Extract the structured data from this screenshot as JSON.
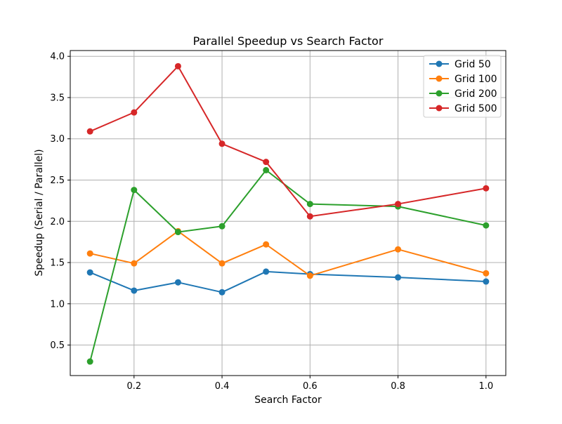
{
  "chart_data": {
    "type": "line",
    "title": "Parallel Speedup vs Search Factor",
    "xlabel": "Search Factor",
    "ylabel": "Speedup (Serial / Parallel)",
    "xlim": [
      0.055,
      1.045
    ],
    "ylim": [
      0.13,
      4.07
    ],
    "xticks": [
      0.2,
      0.4,
      0.6,
      0.8,
      1.0
    ],
    "xtick_labels": [
      "0.2",
      "0.4",
      "0.6",
      "0.8",
      "1.0"
    ],
    "yticks": [
      0.5,
      1.0,
      1.5,
      2.0,
      2.5,
      3.0,
      3.5,
      4.0
    ],
    "ytick_labels": [
      "0.5",
      "1.0",
      "1.5",
      "2.0",
      "2.5",
      "3.0",
      "3.5",
      "4.0"
    ],
    "grid": true,
    "legend_position": "top-right",
    "x": [
      0.1,
      0.2,
      0.3,
      0.4,
      0.5,
      0.6,
      0.8,
      1.0
    ],
    "series": [
      {
        "name": "Grid 50",
        "color": "#1f77b4",
        "values": [
          1.38,
          1.16,
          1.26,
          1.14,
          1.39,
          1.36,
          1.32,
          1.27
        ]
      },
      {
        "name": "Grid 100",
        "color": "#ff7f0e",
        "values": [
          1.61,
          1.49,
          1.88,
          1.49,
          1.72,
          1.34,
          1.66,
          1.37
        ]
      },
      {
        "name": "Grid 200",
        "color": "#2ca02c",
        "values": [
          0.3,
          2.38,
          1.87,
          1.94,
          2.62,
          2.21,
          2.18,
          1.95
        ]
      },
      {
        "name": "Grid 500",
        "color": "#d62728",
        "values": [
          3.09,
          3.32,
          3.88,
          2.94,
          2.72,
          2.06,
          2.21,
          2.4
        ]
      }
    ]
  }
}
